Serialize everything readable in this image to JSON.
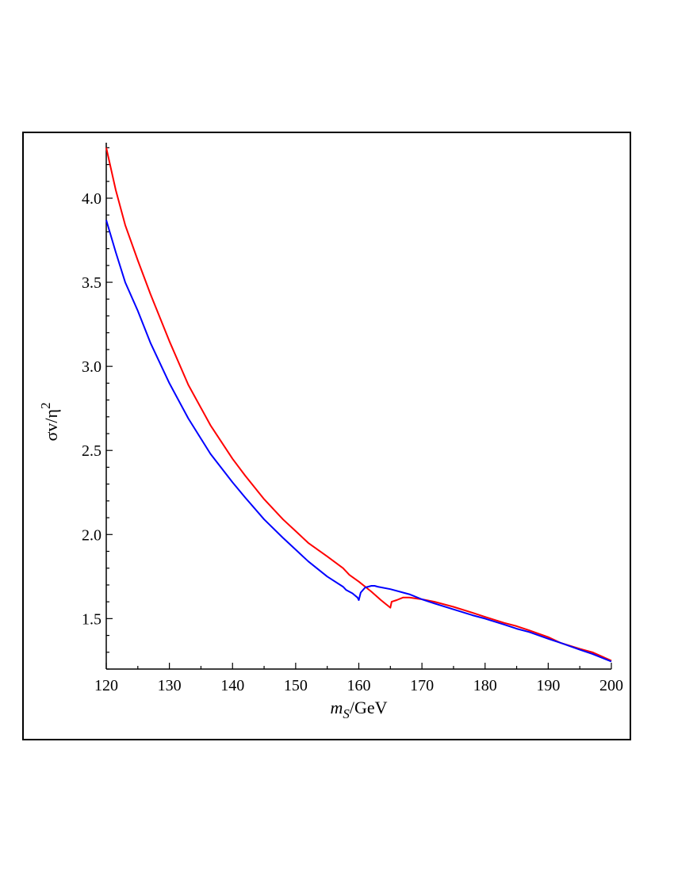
{
  "chart_data": {
    "type": "line",
    "xlabel": "m_S/GeV",
    "xlabel_main": "m",
    "xlabel_sub": "S",
    "xlabel_unit": "/GeV",
    "ylabel_main": "σv/η",
    "ylabel_sup": "2",
    "xlim": [
      120,
      200
    ],
    "ylim": [
      1.2,
      4.33
    ],
    "xticks": [
      120,
      130,
      140,
      150,
      160,
      170,
      180,
      190,
      200
    ],
    "xtick_labels": [
      "120",
      "130",
      "140",
      "150",
      "160",
      "170",
      "180",
      "190",
      "200"
    ],
    "yticks": [
      1.5,
      2.0,
      2.5,
      3.0,
      3.5,
      4.0
    ],
    "ytick_labels": [
      "1.5",
      "2.0",
      "2.5",
      "3.0",
      "3.5",
      "4.0"
    ],
    "grid": false,
    "series": [
      {
        "color": "#ff0000",
        "x": [
          120,
          121.5,
          123,
          125,
          127,
          130,
          133,
          136.5,
          140,
          142,
          145,
          148,
          150,
          152,
          155,
          157.5,
          158.5,
          160,
          162,
          163.5,
          164.5,
          165,
          165.2,
          166,
          167,
          168,
          170,
          172,
          175,
          178,
          180,
          183,
          185,
          187,
          190,
          192,
          195,
          197,
          200
        ],
        "y": [
          4.3,
          4.05,
          3.84,
          3.63,
          3.43,
          3.15,
          2.89,
          2.65,
          2.45,
          2.35,
          2.21,
          2.09,
          2.02,
          1.95,
          1.87,
          1.8,
          1.76,
          1.72,
          1.66,
          1.61,
          1.58,
          1.565,
          1.6,
          1.61,
          1.625,
          1.625,
          1.615,
          1.6,
          1.57,
          1.535,
          1.51,
          1.475,
          1.455,
          1.43,
          1.39,
          1.355,
          1.32,
          1.3,
          1.25
        ]
      },
      {
        "color": "#0000ff",
        "x": [
          120,
          121.5,
          123,
          125,
          127,
          130,
          133,
          136.5,
          140,
          142,
          145,
          148,
          150,
          152,
          155,
          157.5,
          158,
          159,
          159.8,
          160,
          160.3,
          161,
          162,
          162.5,
          163,
          165,
          168,
          170,
          172,
          175,
          178,
          180,
          183,
          185,
          187,
          190,
          192,
          195,
          197,
          200
        ],
        "y": [
          3.87,
          3.68,
          3.5,
          3.33,
          3.14,
          2.9,
          2.69,
          2.48,
          2.31,
          2.22,
          2.09,
          1.98,
          1.91,
          1.84,
          1.75,
          1.69,
          1.67,
          1.65,
          1.625,
          1.61,
          1.655,
          1.685,
          1.695,
          1.695,
          1.69,
          1.675,
          1.645,
          1.615,
          1.59,
          1.555,
          1.52,
          1.5,
          1.465,
          1.44,
          1.42,
          1.38,
          1.355,
          1.315,
          1.29,
          1.245
        ]
      }
    ]
  }
}
